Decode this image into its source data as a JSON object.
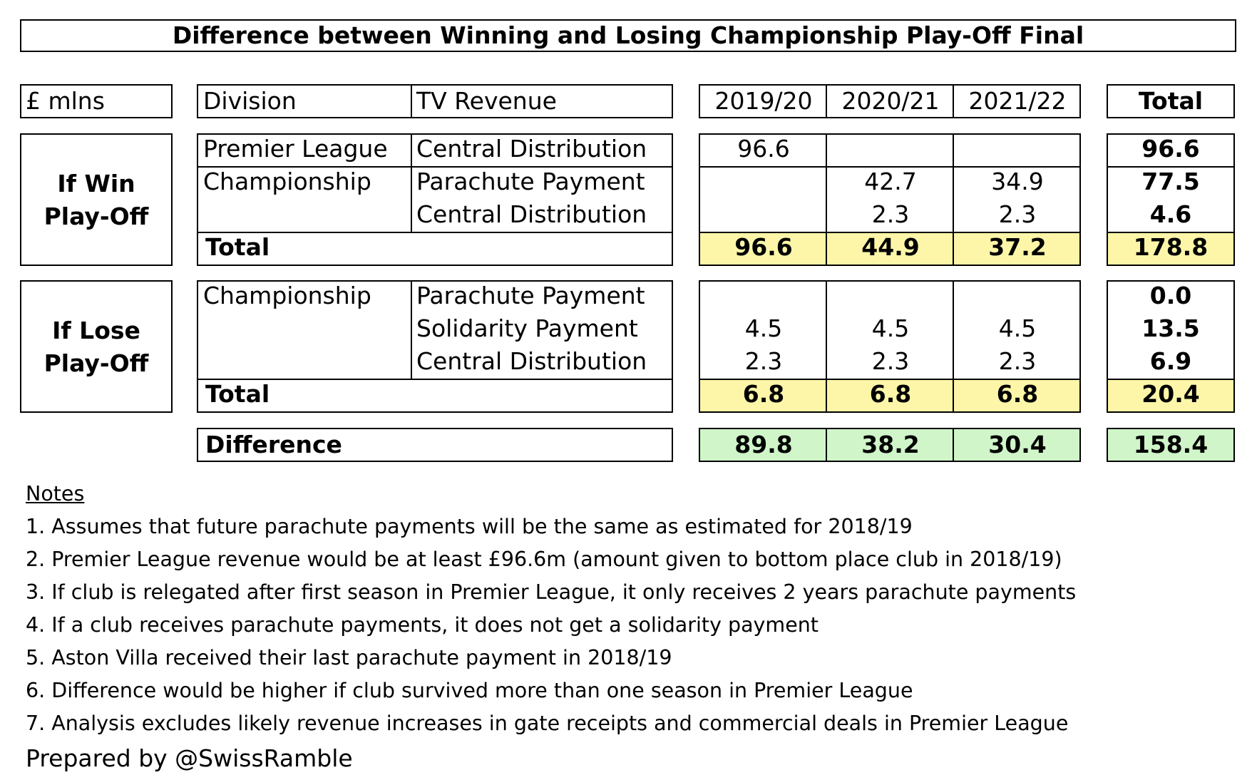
{
  "title": "Difference between Winning and Losing Championship Play-Off Final",
  "header": {
    "unit": "£ mlns",
    "division": "Division",
    "tv_revenue": "TV Revenue",
    "years": [
      "2019/20",
      "2020/21",
      "2021/22"
    ],
    "total": "Total"
  },
  "win": {
    "label_line1": "If Win",
    "label_line2": "Play-Off",
    "rows": [
      {
        "division": "Premier League",
        "revenue": "Central Distribution",
        "y1": "96.6",
        "y2": "",
        "y3": "",
        "total": "96.6"
      },
      {
        "division": "Championship",
        "revenue": "Parachute Payment",
        "y1": "",
        "y2": "42.7",
        "y3": "34.9",
        "total": "77.5"
      },
      {
        "division": "",
        "revenue": "Central Distribution",
        "y1": "",
        "y2": "2.3",
        "y3": "2.3",
        "total": "4.6"
      }
    ],
    "total_label": "Total",
    "totals": {
      "y1": "96.6",
      "y2": "44.9",
      "y3": "37.2",
      "total": "178.8"
    }
  },
  "lose": {
    "label_line1": "If Lose",
    "label_line2": "Play-Off",
    "rows": [
      {
        "division": "Championship",
        "revenue": "Parachute Payment",
        "y1": "",
        "y2": "",
        "y3": "",
        "total": "0.0"
      },
      {
        "division": "",
        "revenue": "Solidarity Payment",
        "y1": "4.5",
        "y2": "4.5",
        "y3": "4.5",
        "total": "13.5"
      },
      {
        "division": "",
        "revenue": "Central Distribution",
        "y1": "2.3",
        "y2": "2.3",
        "y3": "2.3",
        "total": "6.9"
      }
    ],
    "total_label": "Total",
    "totals": {
      "y1": "6.8",
      "y2": "6.8",
      "y3": "6.8",
      "total": "20.4"
    }
  },
  "difference": {
    "label": "Difference",
    "y1": "89.8",
    "y2": "38.2",
    "y3": "30.4",
    "total": "158.4"
  },
  "notes": {
    "heading": "Notes",
    "items": [
      "1. Assumes that future parachute payments will be the same as estimated for 2018/19",
      "2. Premier League revenue would be at least £96.6m (amount given to bottom place club in 2018/19)",
      "3. If club is relegated after first season in Premier League, it only receives 2 years parachute payments",
      "4. If a club receives parachute payments, it does not get a solidarity payment",
      "5. Aston Villa received their last parachute payment in 2018/19",
      "6. Difference would be higher if club survived more than one season in Premier League",
      "7. Analysis excludes likely revenue increases in gate receipts and commercial deals in Premier League"
    ]
  },
  "credit": "Prepared by @SwissRamble",
  "colors": {
    "total_highlight": "#fdf6a8",
    "difference_highlight": "#cff5c9"
  }
}
